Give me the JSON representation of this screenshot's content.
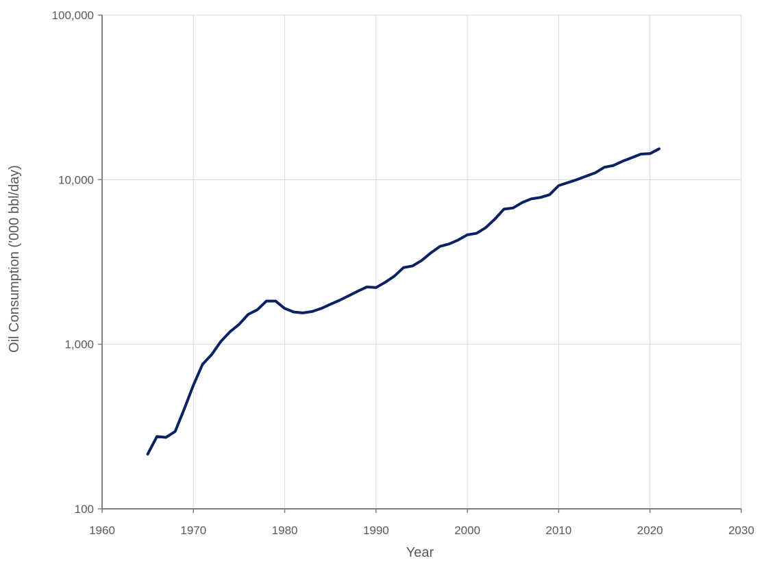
{
  "chart_data": {
    "type": "line",
    "title": "",
    "xlabel": "Year",
    "ylabel": "Oil Consumption ('000 bbl/day)",
    "y_scale": "log",
    "xlim": [
      1960,
      2030
    ],
    "ylim": [
      100,
      100000
    ],
    "x_ticks": [
      1960,
      1970,
      1980,
      1990,
      2000,
      2010,
      2020,
      2030
    ],
    "x_tick_labels": [
      "1960",
      "1970",
      "1980",
      "1990",
      "2000",
      "2010",
      "2020",
      "2030"
    ],
    "y_ticks": [
      100,
      1000,
      10000,
      100000
    ],
    "y_tick_labels": [
      "100",
      "1,000",
      "10,000",
      "100,000"
    ],
    "grid": true,
    "legend": "none",
    "series": [
      {
        "color": "#0B2161",
        "points": [
          [
            1965,
            215
          ],
          [
            1966,
            275
          ],
          [
            1967,
            272
          ],
          [
            1968,
            295
          ],
          [
            1969,
            405
          ],
          [
            1970,
            565
          ],
          [
            1971,
            755
          ],
          [
            1972,
            865
          ],
          [
            1973,
            1040
          ],
          [
            1974,
            1190
          ],
          [
            1975,
            1320
          ],
          [
            1976,
            1520
          ],
          [
            1977,
            1620
          ],
          [
            1978,
            1830
          ],
          [
            1979,
            1830
          ],
          [
            1980,
            1650
          ],
          [
            1981,
            1570
          ],
          [
            1982,
            1550
          ],
          [
            1983,
            1580
          ],
          [
            1984,
            1650
          ],
          [
            1985,
            1750
          ],
          [
            1986,
            1850
          ],
          [
            1987,
            1970
          ],
          [
            1988,
            2100
          ],
          [
            1989,
            2230
          ],
          [
            1990,
            2210
          ],
          [
            1991,
            2380
          ],
          [
            1992,
            2590
          ],
          [
            1993,
            2920
          ],
          [
            1994,
            2990
          ],
          [
            1995,
            3230
          ],
          [
            1996,
            3590
          ],
          [
            1997,
            3930
          ],
          [
            1998,
            4070
          ],
          [
            1999,
            4300
          ],
          [
            2000,
            4620
          ],
          [
            2001,
            4720
          ],
          [
            2002,
            5100
          ],
          [
            2003,
            5750
          ],
          [
            2004,
            6620
          ],
          [
            2005,
            6730
          ],
          [
            2006,
            7260
          ],
          [
            2007,
            7640
          ],
          [
            2008,
            7800
          ],
          [
            2009,
            8100
          ],
          [
            2010,
            9200
          ],
          [
            2011,
            9600
          ],
          [
            2012,
            10000
          ],
          [
            2013,
            10500
          ],
          [
            2014,
            11000
          ],
          [
            2015,
            11900
          ],
          [
            2016,
            12200
          ],
          [
            2017,
            12950
          ],
          [
            2018,
            13600
          ],
          [
            2019,
            14300
          ],
          [
            2020,
            14400
          ],
          [
            2021,
            15400
          ]
        ]
      }
    ]
  }
}
